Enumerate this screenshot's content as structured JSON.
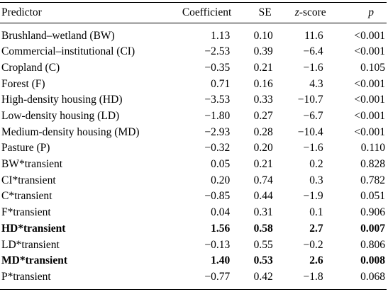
{
  "header": {
    "predictor": "Predictor",
    "coefficient": "Coefficient",
    "se": "SE",
    "z_prefix": "z",
    "z_suffix": "-score",
    "p": "p"
  },
  "rows": [
    {
      "predictor": "Brushland–wetland (BW)",
      "coef": "1.13",
      "se": "0.10",
      "z": "11.6",
      "p": "<0.001",
      "bold": false
    },
    {
      "predictor": "Commercial–institutional (CI)",
      "coef": "−2.53",
      "se": "0.39",
      "z": "−6.4",
      "p": "<0.001",
      "bold": false
    },
    {
      "predictor": "Cropland (C)",
      "coef": "−0.35",
      "se": "0.21",
      "z": "−1.6",
      "p": "0.105",
      "bold": false
    },
    {
      "predictor": "Forest (F)",
      "coef": "0.71",
      "se": "0.16",
      "z": "4.3",
      "p": "<0.001",
      "bold": false
    },
    {
      "predictor": "High-density housing (HD)",
      "coef": "−3.53",
      "se": "0.33",
      "z": "−10.7",
      "p": "<0.001",
      "bold": false
    },
    {
      "predictor": "Low-density housing (LD)",
      "coef": "−1.80",
      "se": "0.27",
      "z": "−6.7",
      "p": "<0.001",
      "bold": false
    },
    {
      "predictor": "Medium-density housing (MD)",
      "coef": "−2.93",
      "se": "0.28",
      "z": "−10.4",
      "p": "<0.001",
      "bold": false
    },
    {
      "predictor": "Pasture (P)",
      "coef": "−0.32",
      "se": "0.20",
      "z": "−1.6",
      "p": "0.110",
      "bold": false
    },
    {
      "predictor": "BW*transient",
      "coef": "0.05",
      "se": "0.21",
      "z": "0.2",
      "p": "0.828",
      "bold": false
    },
    {
      "predictor": "CI*transient",
      "coef": "0.20",
      "se": "0.74",
      "z": "0.3",
      "p": "0.782",
      "bold": false
    },
    {
      "predictor": "C*transient",
      "coef": "−0.85",
      "se": "0.44",
      "z": "−1.9",
      "p": "0.051",
      "bold": false
    },
    {
      "predictor": "F*transient",
      "coef": "0.04",
      "se": "0.31",
      "z": "0.1",
      "p": "0.906",
      "bold": false
    },
    {
      "predictor": "HD*transient",
      "coef": "1.56",
      "se": "0.58",
      "z": "2.7",
      "p": "0.007",
      "bold": true
    },
    {
      "predictor": "LD*transient",
      "coef": "−0.13",
      "se": "0.55",
      "z": "−0.2",
      "p": "0.806",
      "bold": false
    },
    {
      "predictor": "MD*transient",
      "coef": "1.40",
      "se": "0.53",
      "z": "2.6",
      "p": "0.008",
      "bold": true
    },
    {
      "predictor": "P*transient",
      "coef": "−0.77",
      "se": "0.42",
      "z": "−1.8",
      "p": "0.068",
      "bold": false
    }
  ]
}
